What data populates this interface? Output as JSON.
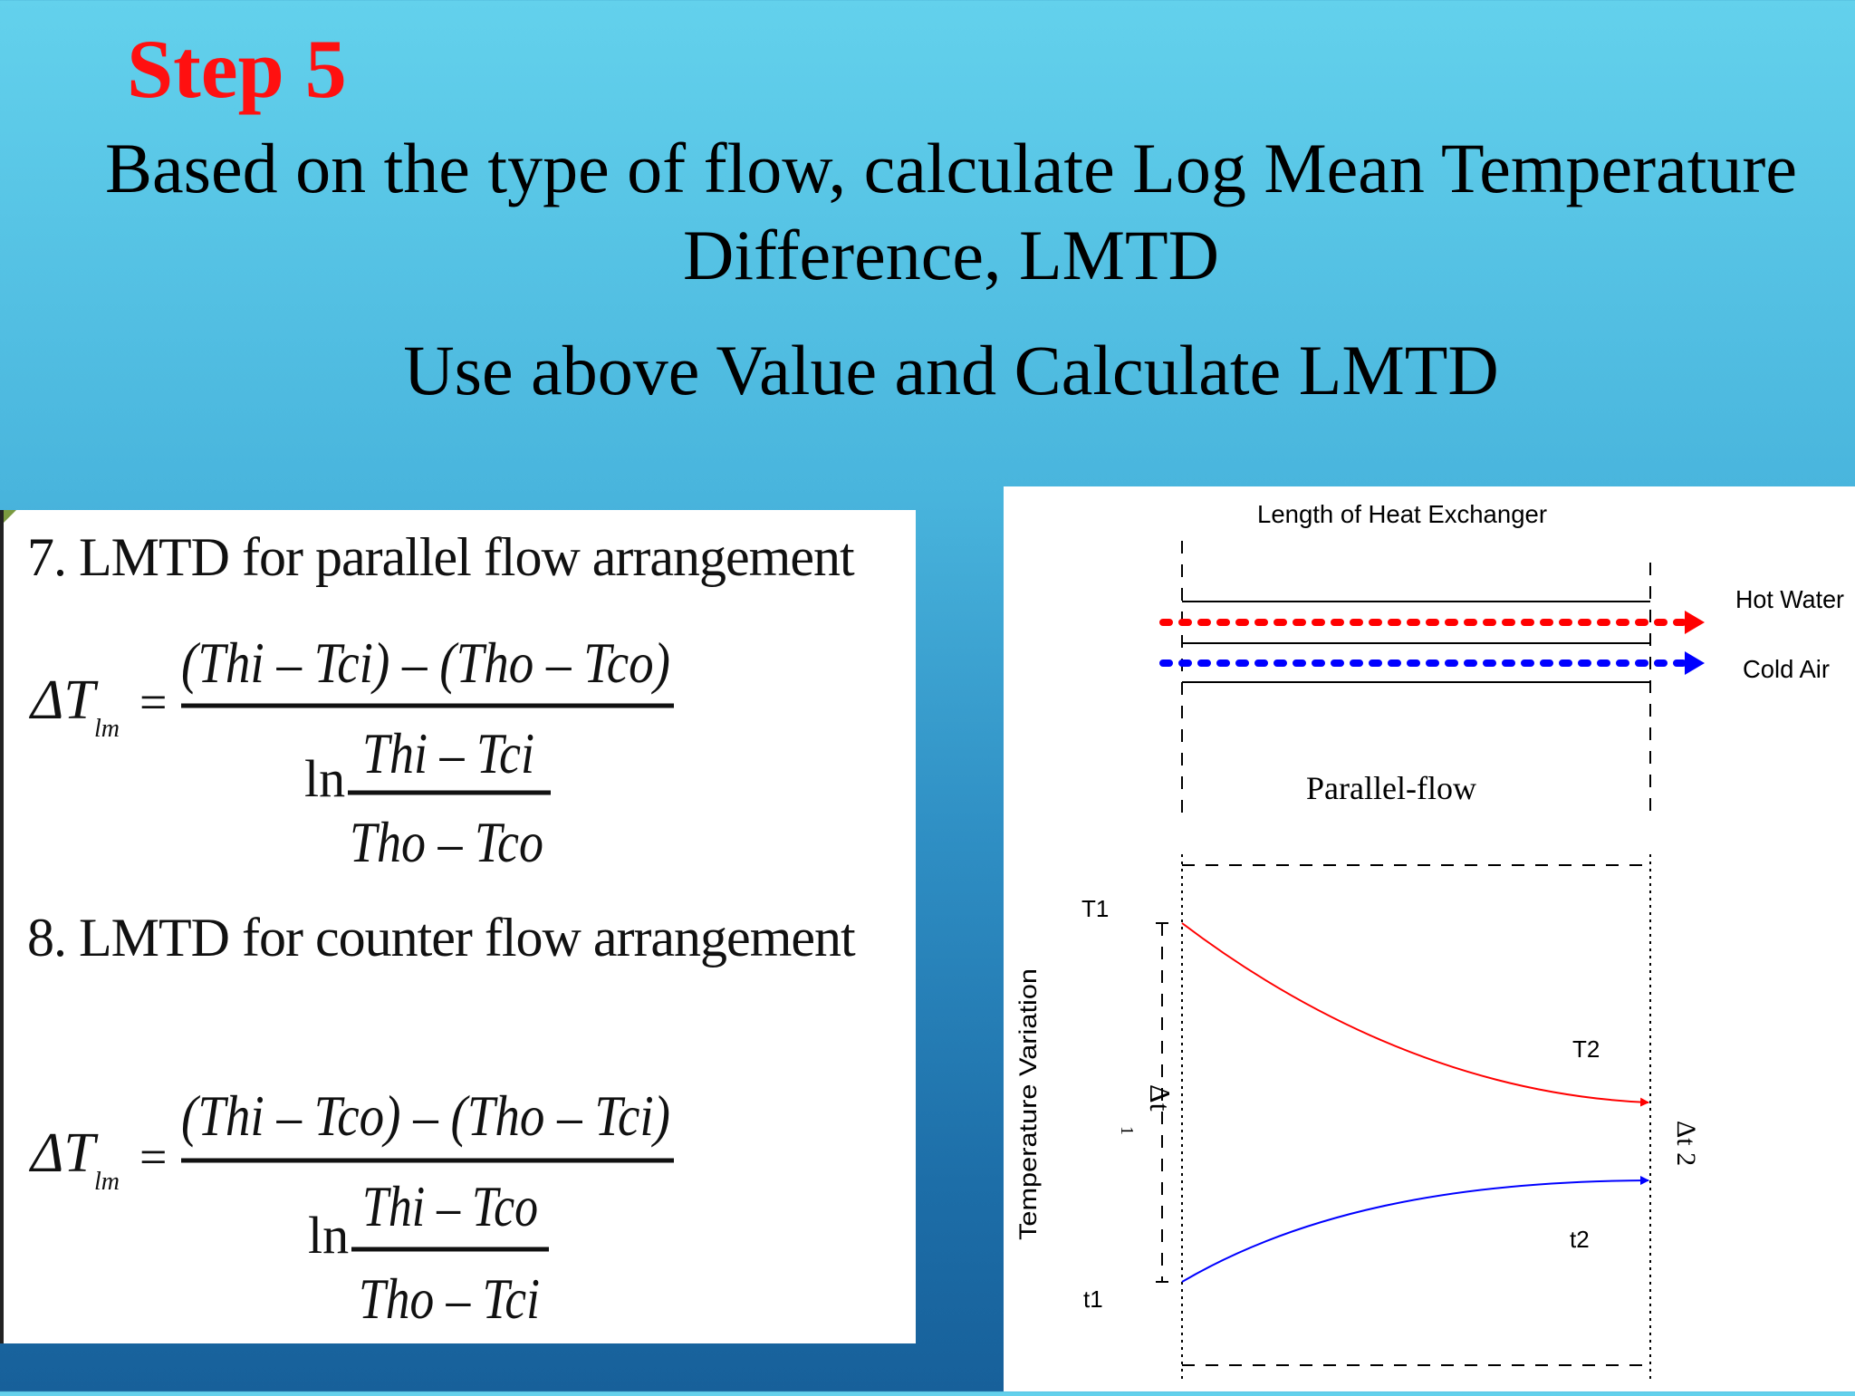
{
  "slide": {
    "step": "Step 5",
    "subtitle_line1": "Based on the type of flow, calculate Log Mean Temperature",
    "subtitle_line2": "Difference, LMTD",
    "instruction": "Use above Value and Calculate LMTD"
  },
  "formulas": {
    "parallel": {
      "heading": "7. LMTD for parallel flow arrangement",
      "lhs": "ΔT",
      "lhs_sub": "lm",
      "equals": "=",
      "numerator": "(Thi – Tci) – (Tho – Tco)",
      "ln": "ln",
      "inner_num": "Thi – Tci",
      "inner_den": "Tho – Tco"
    },
    "counter": {
      "heading": "8.  LMTD for counter flow arrangement",
      "lhs": "ΔT",
      "lhs_sub": "lm",
      "equals": "=",
      "numerator": "(Thi – Tco) – (Tho – Tci)",
      "ln": "ln",
      "inner_num": "Thi – Tco",
      "inner_den": "Tho – Tci"
    }
  },
  "diagram": {
    "length_label": "Length of Heat Exchanger",
    "hot_label": "Hot Water",
    "cold_label": "Cold Air",
    "flow_label": "Parallel-flow",
    "y_axis_label": "Temperature Variation",
    "T1": "T1",
    "T2": "T2",
    "t1": "t1",
    "t2": "t2",
    "dt1_main": "Δt",
    "dt1_sub": "1",
    "dt2": "Δt 2",
    "colors": {
      "hot": "#ff0000",
      "cold": "#0000ff"
    }
  }
}
